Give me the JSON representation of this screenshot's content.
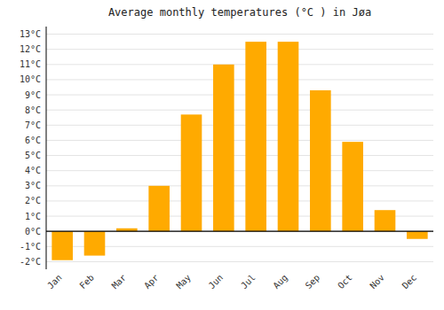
{
  "chart_data": {
    "type": "bar",
    "title": "Average monthly temperatures (°C ) in Jøa",
    "categories": [
      "Jan",
      "Feb",
      "Mar",
      "Apr",
      "May",
      "Jun",
      "Jul",
      "Aug",
      "Sep",
      "Oct",
      "Nov",
      "Dec"
    ],
    "values": [
      -1.9,
      -1.6,
      0.2,
      3.0,
      7.7,
      11.0,
      12.5,
      12.5,
      9.3,
      5.9,
      1.4,
      -0.5
    ],
    "color": "#FFAA00",
    "ylim": [
      -2.5,
      13.5
    ],
    "yticks": [
      {
        "value": -2,
        "label": "-2°C"
      },
      {
        "value": -1,
        "label": "-1°C"
      },
      {
        "value": 0,
        "label": "0°C"
      },
      {
        "value": 1,
        "label": "1°C"
      },
      {
        "value": 2,
        "label": "2°C"
      },
      {
        "value": 3,
        "label": "3°C"
      },
      {
        "value": 4,
        "label": "4°C"
      },
      {
        "value": 5,
        "label": "5°C"
      },
      {
        "value": 6,
        "label": "6°C"
      },
      {
        "value": 7,
        "label": "7°C"
      },
      {
        "value": 8,
        "label": "8°C"
      },
      {
        "value": 9,
        "label": "9°C"
      },
      {
        "value": 10,
        "label": "10°C"
      },
      {
        "value": 11,
        "label": "11°C"
      },
      {
        "value": 12,
        "label": "12°C"
      },
      {
        "value": 13,
        "label": "13°C"
      }
    ],
    "grid": true
  }
}
